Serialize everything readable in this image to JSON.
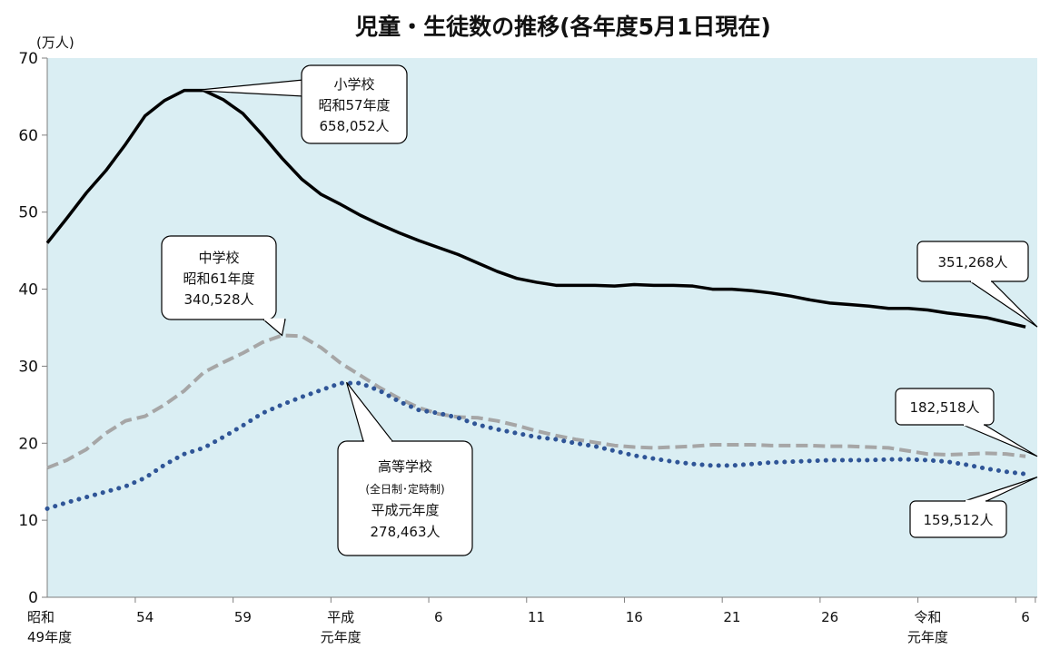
{
  "title": "児童・生徒数の推移(各年度5月1日現在)",
  "chart_data": {
    "type": "line",
    "title": "児童・生徒数の推移(各年度5月1日現在)",
    "y_unit": "(万人)",
    "ylim": [
      0,
      70
    ],
    "yticks": [
      0,
      10,
      20,
      30,
      40,
      50,
      60,
      70
    ],
    "x": [
      1974,
      1975,
      1976,
      1977,
      1978,
      1979,
      1980,
      1981,
      1982,
      1983,
      1984,
      1985,
      1986,
      1987,
      1988,
      1989,
      1990,
      1991,
      1992,
      1993,
      1994,
      1995,
      1996,
      1997,
      1998,
      1999,
      2000,
      2001,
      2002,
      2003,
      2004,
      2005,
      2006,
      2007,
      2008,
      2009,
      2010,
      2011,
      2012,
      2013,
      2014,
      2015,
      2016,
      2017,
      2018,
      2019,
      2020,
      2021,
      2022,
      2023,
      2024
    ],
    "xlim": [
      1974,
      2024.6
    ],
    "xticks": [
      {
        "x": 1974,
        "lines": [
          "昭和",
          "49年度"
        ]
      },
      {
        "x": 1979,
        "lines": [
          "54"
        ]
      },
      {
        "x": 1984,
        "lines": [
          "59"
        ]
      },
      {
        "x": 1989,
        "lines": [
          "平成",
          "元年度"
        ]
      },
      {
        "x": 1994,
        "lines": [
          "6"
        ]
      },
      {
        "x": 1999,
        "lines": [
          "11"
        ]
      },
      {
        "x": 2004,
        "lines": [
          "16"
        ]
      },
      {
        "x": 2009,
        "lines": [
          "21"
        ]
      },
      {
        "x": 2014,
        "lines": [
          "26"
        ]
      },
      {
        "x": 2019,
        "lines": [
          "令和",
          "元年度"
        ]
      },
      {
        "x": 2024,
        "lines": [
          "6"
        ]
      }
    ],
    "grid": false,
    "series": [
      {
        "key": "elementary",
        "color": "#000000",
        "style": "solid",
        "values": [
          46.0,
          49.2,
          52.5,
          55.4,
          58.8,
          62.5,
          64.5,
          65.8,
          65.8,
          64.6,
          62.8,
          60.0,
          57.0,
          54.3,
          52.3,
          51.0,
          49.6,
          48.4,
          47.3,
          46.3,
          45.4,
          44.5,
          43.4,
          42.3,
          41.4,
          40.9,
          40.5,
          40.5,
          40.5,
          40.4,
          40.6,
          40.5,
          40.5,
          40.4,
          40.0,
          40.0,
          39.8,
          39.5,
          39.1,
          38.6,
          38.2,
          38.0,
          37.8,
          37.5,
          37.5,
          37.3,
          36.9,
          36.6,
          36.3,
          35.7,
          35.1
        ]
      },
      {
        "key": "junior_high",
        "color": "#a6a6a6",
        "style": "dashed",
        "values": [
          16.8,
          17.8,
          19.2,
          21.3,
          22.9,
          23.5,
          25.0,
          26.8,
          29.2,
          30.5,
          31.7,
          33.1,
          34.0,
          33.9,
          32.4,
          30.4,
          28.8,
          27.2,
          25.8,
          24.6,
          23.8,
          23.4,
          23.3,
          22.9,
          22.3,
          21.6,
          21.0,
          20.5,
          20.1,
          19.7,
          19.5,
          19.4,
          19.5,
          19.6,
          19.8,
          19.8,
          19.8,
          19.7,
          19.7,
          19.7,
          19.6,
          19.6,
          19.5,
          19.4,
          19.0,
          18.6,
          18.5,
          18.6,
          18.7,
          18.6,
          18.3
        ]
      },
      {
        "key": "high_school",
        "color": "#2f5597",
        "style": "dotted",
        "values": [
          11.5,
          12.3,
          13.0,
          13.7,
          14.4,
          15.5,
          17.2,
          18.6,
          19.4,
          20.8,
          22.3,
          23.9,
          25.0,
          26.0,
          26.9,
          27.8,
          27.8,
          26.8,
          25.4,
          24.3,
          23.9,
          23.3,
          22.4,
          21.8,
          21.3,
          20.8,
          20.5,
          20.0,
          19.6,
          19.0,
          18.4,
          18.0,
          17.6,
          17.3,
          17.1,
          17.1,
          17.3,
          17.5,
          17.6,
          17.7,
          17.8,
          17.8,
          17.8,
          17.9,
          17.9,
          17.8,
          17.6,
          17.2,
          16.7,
          16.3,
          16.0
        ]
      }
    ],
    "annotations": [
      {
        "key": "elementary_peak",
        "lines": [
          "小学校",
          "昭和57年度",
          "658,052人"
        ],
        "x": 1981.5,
        "y": 65.8
      },
      {
        "key": "junior_high_peak",
        "lines": [
          "中学校",
          "昭和61年度",
          "340,528人"
        ],
        "x": 1986,
        "y": 34.0
      },
      {
        "key": "high_school_peak",
        "lines": [
          "高等学校",
          "(全日制･定時制)",
          "平成元年度",
          "278,463人"
        ],
        "x": 1989.3,
        "y": 27.9
      },
      {
        "key": "elementary_latest",
        "lines": [
          "351,268人"
        ],
        "x": 2024.6,
        "y": 35.1
      },
      {
        "key": "junior_high_latest",
        "lines": [
          "182,518人"
        ],
        "x": 2024.6,
        "y": 18.3
      },
      {
        "key": "high_school_latest",
        "lines": [
          "159,512人"
        ],
        "x": 2024.6,
        "y": 15.6
      }
    ]
  }
}
